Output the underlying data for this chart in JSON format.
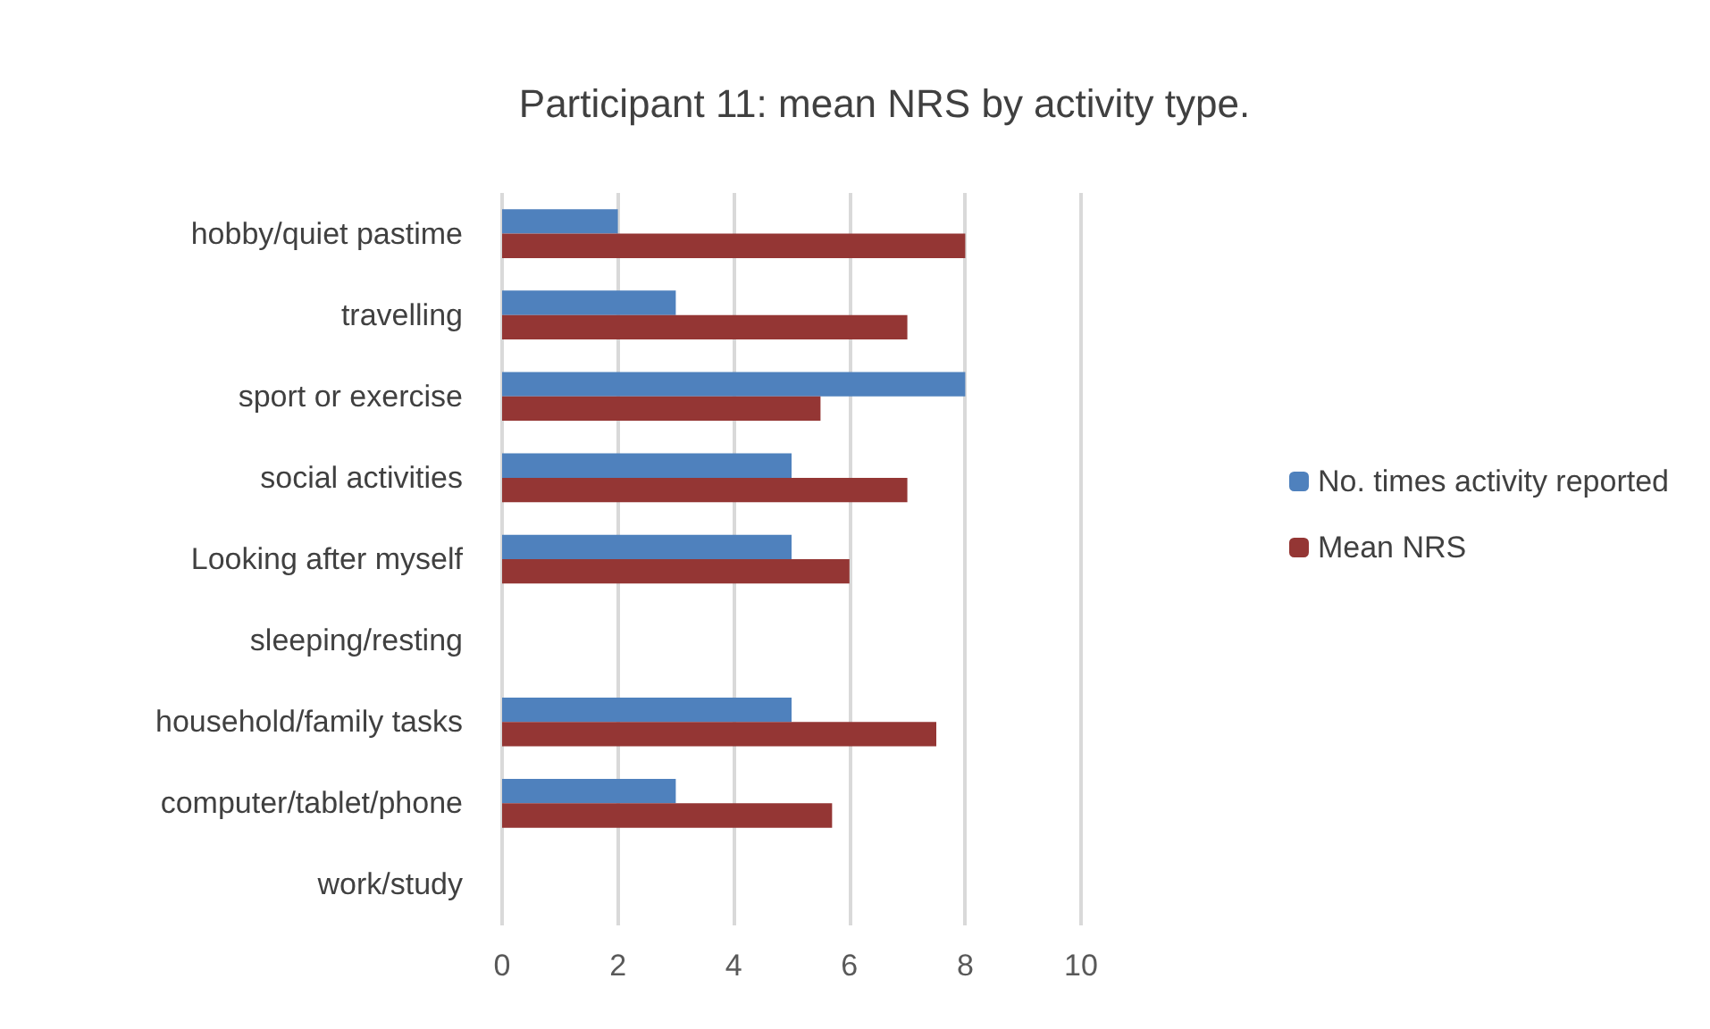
{
  "chart_data": {
    "type": "bar",
    "orientation": "horizontal",
    "title": "Participant 11: mean NRS by activity type.",
    "categories": [
      "hobby/quiet pastime",
      "travelling",
      "sport or exercise",
      "social activities",
      "Looking after myself",
      "sleeping/resting",
      "household/family tasks",
      "computer/tablet/phone",
      "work/study"
    ],
    "series": [
      {
        "name": "No. times activity reported",
        "color": "#4f81bd",
        "values": [
          2,
          3,
          8,
          5,
          5,
          null,
          5,
          3,
          null
        ]
      },
      {
        "name": "Mean NRS",
        "color": "#943634",
        "values": [
          8,
          7,
          5.5,
          7,
          6,
          null,
          7.5,
          5.7,
          null
        ]
      }
    ],
    "xlim": [
      0,
      10
    ],
    "xticks": [
      0,
      2,
      4,
      6,
      8,
      10
    ],
    "grid": "x",
    "legend": "right"
  }
}
